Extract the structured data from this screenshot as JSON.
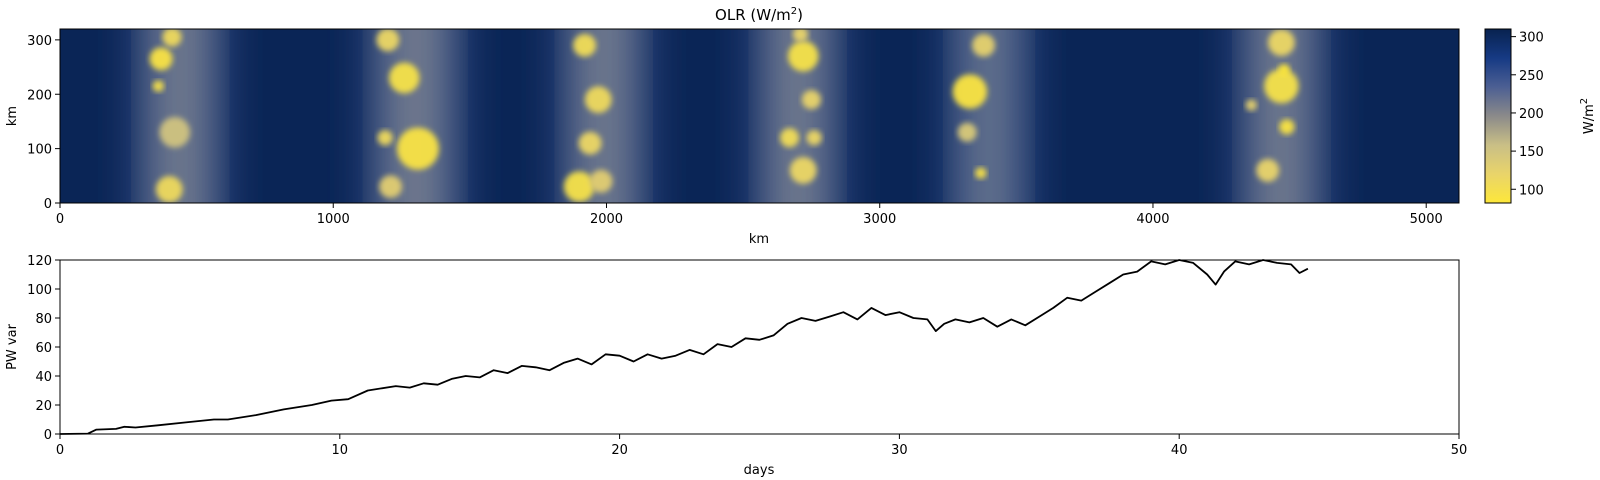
{
  "chart_data": [
    {
      "type": "heatmap",
      "title_base": "OLR (W/m",
      "title_sup": "2",
      "title_tail": ")",
      "xlabel": "km",
      "ylabel": "km",
      "xlim": [
        0,
        5120
      ],
      "ylim": [
        0,
        320
      ],
      "xticks": [
        "0",
        "1000",
        "2000",
        "3000",
        "4000",
        "5000"
      ],
      "yticks": [
        "0",
        "100",
        "200",
        "300"
      ],
      "colorbar": {
        "label_base": "W/m",
        "label_sup": "2",
        "range": [
          82,
          310
        ],
        "ticks": [
          "100",
          "150",
          "200",
          "250",
          "300"
        ],
        "colors": [
          "#fde73a",
          "#e9d46a",
          "#c9bf86",
          "#8b8a8a",
          "#4c5f93",
          "#163a84",
          "#08224f"
        ]
      },
      "background_olr": 305,
      "convective_bands": [
        {
          "center_km": 440,
          "width_km": 300,
          "olr_min": 140
        },
        {
          "center_km": 1300,
          "width_km": 320,
          "olr_min": 140
        },
        {
          "center_km": 1990,
          "width_km": 300,
          "olr_min": 140
        },
        {
          "center_km": 2700,
          "width_km": 300,
          "olr_min": 140
        },
        {
          "center_km": 3400,
          "width_km": 280,
          "olr_min": 150
        },
        {
          "center_km": 4470,
          "width_km": 300,
          "olr_min": 140
        }
      ],
      "cloud_clusters": [
        {
          "x_km": 370,
          "y_km": 265,
          "r_km": 30,
          "olr": 90
        },
        {
          "x_km": 410,
          "y_km": 305,
          "r_km": 25,
          "olr": 110
        },
        {
          "x_km": 360,
          "y_km": 215,
          "r_km": 15,
          "olr": 95
        },
        {
          "x_km": 420,
          "y_km": 130,
          "r_km": 40,
          "olr": 150
        },
        {
          "x_km": 400,
          "y_km": 25,
          "r_km": 35,
          "olr": 110
        },
        {
          "x_km": 1260,
          "y_km": 230,
          "r_km": 40,
          "olr": 95
        },
        {
          "x_km": 1310,
          "y_km": 100,
          "r_km": 55,
          "olr": 90
        },
        {
          "x_km": 1200,
          "y_km": 300,
          "r_km": 30,
          "olr": 115
        },
        {
          "x_km": 1190,
          "y_km": 120,
          "r_km": 20,
          "olr": 110
        },
        {
          "x_km": 1210,
          "y_km": 30,
          "r_km": 30,
          "olr": 130
        },
        {
          "x_km": 1920,
          "y_km": 290,
          "r_km": 30,
          "olr": 105
        },
        {
          "x_km": 1970,
          "y_km": 190,
          "r_km": 35,
          "olr": 110
        },
        {
          "x_km": 1940,
          "y_km": 110,
          "r_km": 30,
          "olr": 115
        },
        {
          "x_km": 1900,
          "y_km": 30,
          "r_km": 40,
          "olr": 95
        },
        {
          "x_km": 1980,
          "y_km": 40,
          "r_km": 30,
          "olr": 130
        },
        {
          "x_km": 2720,
          "y_km": 270,
          "r_km": 40,
          "olr": 95
        },
        {
          "x_km": 2750,
          "y_km": 190,
          "r_km": 25,
          "olr": 120
        },
        {
          "x_km": 2670,
          "y_km": 120,
          "r_km": 25,
          "olr": 105
        },
        {
          "x_km": 2720,
          "y_km": 60,
          "r_km": 35,
          "olr": 115
        },
        {
          "x_km": 2760,
          "y_km": 120,
          "r_km": 20,
          "olr": 115
        },
        {
          "x_km": 2710,
          "y_km": 310,
          "r_km": 20,
          "olr": 120
        },
        {
          "x_km": 3330,
          "y_km": 205,
          "r_km": 45,
          "olr": 88
        },
        {
          "x_km": 3380,
          "y_km": 290,
          "r_km": 30,
          "olr": 125
        },
        {
          "x_km": 3370,
          "y_km": 55,
          "r_km": 15,
          "olr": 92
        },
        {
          "x_km": 3320,
          "y_km": 130,
          "r_km": 25,
          "olr": 140
        },
        {
          "x_km": 4470,
          "y_km": 215,
          "r_km": 45,
          "olr": 95
        },
        {
          "x_km": 4480,
          "y_km": 245,
          "r_km": 15,
          "olr": 82
        },
        {
          "x_km": 4490,
          "y_km": 140,
          "r_km": 20,
          "olr": 88
        },
        {
          "x_km": 4470,
          "y_km": 295,
          "r_km": 35,
          "olr": 115
        },
        {
          "x_km": 4420,
          "y_km": 60,
          "r_km": 30,
          "olr": 120
        },
        {
          "x_km": 4360,
          "y_km": 180,
          "r_km": 15,
          "olr": 125
        }
      ]
    },
    {
      "type": "line",
      "xlabel": "days",
      "ylabel": "PW var",
      "xlim": [
        0,
        50
      ],
      "ylim": [
        0,
        120
      ],
      "xticks": [
        "0",
        "10",
        "20",
        "30",
        "40",
        "50"
      ],
      "yticks": [
        "0",
        "20",
        "40",
        "60",
        "80",
        "100",
        "120"
      ],
      "series": [
        {
          "color": "#000000",
          "x": [
            0,
            1.0,
            1.3,
            2.0,
            2.3,
            2.7,
            3.5,
            4.5,
            5.5,
            6.0,
            7.0,
            8.0,
            9.0,
            9.7,
            10.3,
            11.0,
            12.0,
            12.5,
            13.0,
            13.5,
            14.0,
            14.5,
            15.0,
            15.5,
            16.0,
            16.5,
            17.0,
            17.5,
            18.0,
            18.5,
            19.0,
            19.5,
            20.0,
            20.5,
            21.0,
            21.5,
            22.0,
            22.5,
            23.0,
            23.5,
            24.0,
            24.5,
            25.0,
            25.5,
            26.0,
            26.5,
            27.0,
            27.5,
            28.0,
            28.5,
            29.0,
            29.5,
            30.0,
            30.5,
            31.0,
            31.3,
            31.6,
            32.0,
            32.5,
            33.0,
            33.5,
            34.0,
            34.5,
            35.0,
            35.5,
            36.0,
            36.5,
            37.0,
            37.5,
            38.0,
            38.5,
            39.0,
            39.5,
            40.0,
            40.5,
            41.0,
            41.3,
            41.6,
            42.0,
            42.5,
            43.0,
            43.5,
            44.0,
            44.3,
            44.6
          ],
          "values": [
            0,
            0.3,
            3,
            3.5,
            5,
            4.5,
            6,
            8,
            10,
            10,
            13,
            17,
            20,
            23,
            24,
            30,
            33,
            32,
            35,
            34,
            38,
            40,
            39,
            44,
            42,
            47,
            46,
            44,
            49,
            52,
            48,
            55,
            54,
            50,
            55,
            52,
            54,
            58,
            55,
            62,
            60,
            66,
            65,
            68,
            76,
            80,
            78,
            81,
            84,
            79,
            87,
            82,
            84,
            80,
            79,
            71,
            76,
            79,
            77,
            80,
            74,
            79,
            75,
            81,
            87,
            94,
            92,
            98,
            104,
            110,
            112,
            119,
            117,
            120,
            118,
            110,
            103,
            112,
            119,
            117,
            121,
            118,
            117,
            111,
            114
          ]
        }
      ]
    }
  ]
}
